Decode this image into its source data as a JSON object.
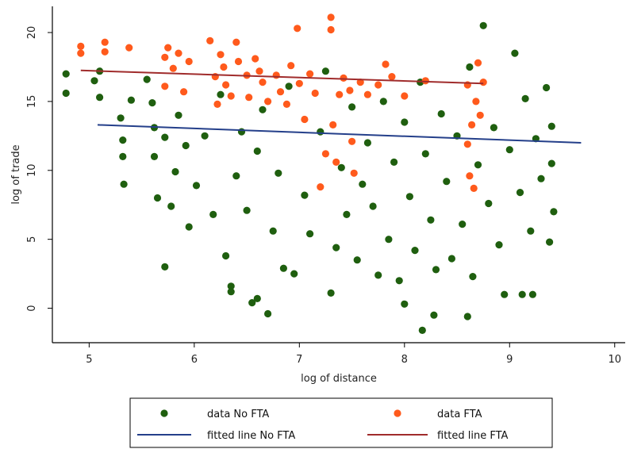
{
  "chart_data": {
    "type": "scatter",
    "title": "",
    "xlabel": "log of distance",
    "ylabel": "log of trade",
    "xlim": [
      4.65,
      10.1
    ],
    "ylim": [
      -2.5,
      21.9
    ],
    "x_ticks": [
      5,
      6,
      7,
      8,
      9,
      10
    ],
    "y_ticks": [
      0,
      5,
      10,
      15,
      20
    ],
    "grid": false,
    "legend_position": "bottom",
    "series": [
      {
        "name": "data No FTA",
        "kind": "scatter",
        "color": "#1f5f0f",
        "points": [
          [
            4.78,
            17.0
          ],
          [
            4.78,
            15.6
          ],
          [
            5.05,
            16.5
          ],
          [
            5.1,
            17.2
          ],
          [
            5.1,
            15.3
          ],
          [
            5.3,
            13.8
          ],
          [
            5.32,
            12.2
          ],
          [
            5.32,
            11.0
          ],
          [
            5.33,
            9.0
          ],
          [
            5.4,
            15.1
          ],
          [
            5.55,
            16.6
          ],
          [
            5.6,
            14.9
          ],
          [
            5.62,
            13.1
          ],
          [
            5.62,
            11.0
          ],
          [
            5.65,
            8.0
          ],
          [
            5.72,
            3.0
          ],
          [
            5.72,
            12.4
          ],
          [
            5.78,
            7.4
          ],
          [
            5.82,
            9.9
          ],
          [
            5.85,
            14.0
          ],
          [
            5.92,
            11.8
          ],
          [
            5.95,
            5.9
          ],
          [
            6.02,
            8.9
          ],
          [
            6.1,
            12.5
          ],
          [
            6.18,
            6.8
          ],
          [
            6.25,
            15.5
          ],
          [
            6.3,
            3.8
          ],
          [
            6.35,
            1.6
          ],
          [
            6.35,
            1.2
          ],
          [
            6.4,
            9.6
          ],
          [
            6.45,
            12.8
          ],
          [
            6.5,
            7.1
          ],
          [
            6.55,
            0.4
          ],
          [
            6.6,
            11.4
          ],
          [
            6.6,
            0.7
          ],
          [
            6.65,
            14.4
          ],
          [
            6.7,
            -0.4
          ],
          [
            6.75,
            5.6
          ],
          [
            6.8,
            9.8
          ],
          [
            6.85,
            2.9
          ],
          [
            6.9,
            16.1
          ],
          [
            6.95,
            2.5
          ],
          [
            7.05,
            8.2
          ],
          [
            7.1,
            5.4
          ],
          [
            7.2,
            12.8
          ],
          [
            7.25,
            17.2
          ],
          [
            7.3,
            1.1
          ],
          [
            7.35,
            4.4
          ],
          [
            7.4,
            10.2
          ],
          [
            7.45,
            6.8
          ],
          [
            7.5,
            14.6
          ],
          [
            7.55,
            3.5
          ],
          [
            7.6,
            9.0
          ],
          [
            7.65,
            12.0
          ],
          [
            7.7,
            7.4
          ],
          [
            7.75,
            2.4
          ],
          [
            7.8,
            15.0
          ],
          [
            7.85,
            5.0
          ],
          [
            7.9,
            10.6
          ],
          [
            7.95,
            2.0
          ],
          [
            8.0,
            13.5
          ],
          [
            8.0,
            0.3
          ],
          [
            8.05,
            8.1
          ],
          [
            8.1,
            4.2
          ],
          [
            8.15,
            16.4
          ],
          [
            8.17,
            -1.6
          ],
          [
            8.2,
            11.2
          ],
          [
            8.25,
            6.4
          ],
          [
            8.28,
            -0.5
          ],
          [
            8.3,
            2.8
          ],
          [
            8.35,
            14.1
          ],
          [
            8.4,
            9.2
          ],
          [
            8.45,
            3.6
          ],
          [
            8.5,
            12.5
          ],
          [
            8.55,
            6.1
          ],
          [
            8.6,
            -0.6
          ],
          [
            8.62,
            17.5
          ],
          [
            8.65,
            2.3
          ],
          [
            8.7,
            10.4
          ],
          [
            8.75,
            20.5
          ],
          [
            8.8,
            7.6
          ],
          [
            8.85,
            13.1
          ],
          [
            8.9,
            4.6
          ],
          [
            8.95,
            1.0
          ],
          [
            9.0,
            11.5
          ],
          [
            9.05,
            18.5
          ],
          [
            9.1,
            8.4
          ],
          [
            9.12,
            1.0
          ],
          [
            9.15,
            15.2
          ],
          [
            9.2,
            5.6
          ],
          [
            9.22,
            1.0
          ],
          [
            9.25,
            12.3
          ],
          [
            9.3,
            9.4
          ],
          [
            9.35,
            16.0
          ],
          [
            9.38,
            4.8
          ],
          [
            9.4,
            13.2
          ],
          [
            9.42,
            7.0
          ],
          [
            9.4,
            10.5
          ]
        ]
      },
      {
        "name": "data FTA",
        "kind": "scatter",
        "color": "#ff5a1c",
        "points": [
          [
            4.92,
            18.5
          ],
          [
            4.92,
            19.0
          ],
          [
            5.15,
            19.3
          ],
          [
            5.15,
            18.6
          ],
          [
            5.38,
            18.9
          ],
          [
            5.72,
            18.2
          ],
          [
            5.72,
            16.1
          ],
          [
            5.75,
            18.9
          ],
          [
            5.8,
            17.4
          ],
          [
            5.85,
            18.5
          ],
          [
            5.9,
            15.7
          ],
          [
            5.95,
            17.9
          ],
          [
            6.15,
            19.4
          ],
          [
            6.2,
            16.8
          ],
          [
            6.22,
            14.8
          ],
          [
            6.25,
            18.4
          ],
          [
            6.28,
            17.5
          ],
          [
            6.3,
            16.2
          ],
          [
            6.35,
            15.4
          ],
          [
            6.4,
            19.3
          ],
          [
            6.42,
            17.9
          ],
          [
            6.5,
            16.9
          ],
          [
            6.52,
            15.3
          ],
          [
            6.58,
            18.1
          ],
          [
            6.62,
            17.2
          ],
          [
            6.65,
            16.4
          ],
          [
            6.7,
            15.0
          ],
          [
            6.78,
            16.9
          ],
          [
            6.82,
            15.7
          ],
          [
            6.88,
            14.8
          ],
          [
            6.92,
            17.6
          ],
          [
            6.98,
            20.3
          ],
          [
            7.0,
            16.3
          ],
          [
            7.05,
            13.7
          ],
          [
            7.1,
            17.0
          ],
          [
            7.15,
            15.6
          ],
          [
            7.2,
            8.8
          ],
          [
            7.25,
            11.2
          ],
          [
            7.3,
            21.1
          ],
          [
            7.3,
            20.2
          ],
          [
            7.32,
            13.3
          ],
          [
            7.35,
            10.6
          ],
          [
            7.38,
            15.5
          ],
          [
            7.42,
            16.7
          ],
          [
            7.48,
            15.8
          ],
          [
            7.5,
            12.1
          ],
          [
            7.52,
            9.8
          ],
          [
            7.58,
            16.4
          ],
          [
            7.65,
            15.5
          ],
          [
            7.75,
            16.2
          ],
          [
            7.82,
            17.7
          ],
          [
            7.88,
            16.8
          ],
          [
            8.0,
            15.4
          ],
          [
            8.2,
            16.5
          ],
          [
            8.6,
            16.2
          ],
          [
            8.6,
            11.9
          ],
          [
            8.62,
            9.6
          ],
          [
            8.64,
            13.3
          ],
          [
            8.66,
            8.7
          ],
          [
            8.68,
            15.0
          ],
          [
            8.7,
            17.8
          ],
          [
            8.72,
            14.0
          ],
          [
            8.75,
            16.4
          ]
        ]
      },
      {
        "name": "fitted line No FTA",
        "kind": "line",
        "color": "#243f8a",
        "points": [
          [
            5.08,
            13.3
          ],
          [
            9.68,
            12.0
          ]
        ]
      },
      {
        "name": "fitted line FTA",
        "kind": "line",
        "color": "#a02c2c",
        "points": [
          [
            4.92,
            17.25
          ],
          [
            8.75,
            16.3
          ]
        ]
      }
    ],
    "legend": [
      {
        "label": "data No FTA",
        "marker": "dot",
        "color": "#1f5f0f"
      },
      {
        "label": "data FTA",
        "marker": "dot",
        "color": "#ff5a1c"
      },
      {
        "label": "fitted line No FTA",
        "marker": "line",
        "color": "#243f8a"
      },
      {
        "label": "fitted line FTA",
        "marker": "line",
        "color": "#a02c2c"
      }
    ]
  }
}
